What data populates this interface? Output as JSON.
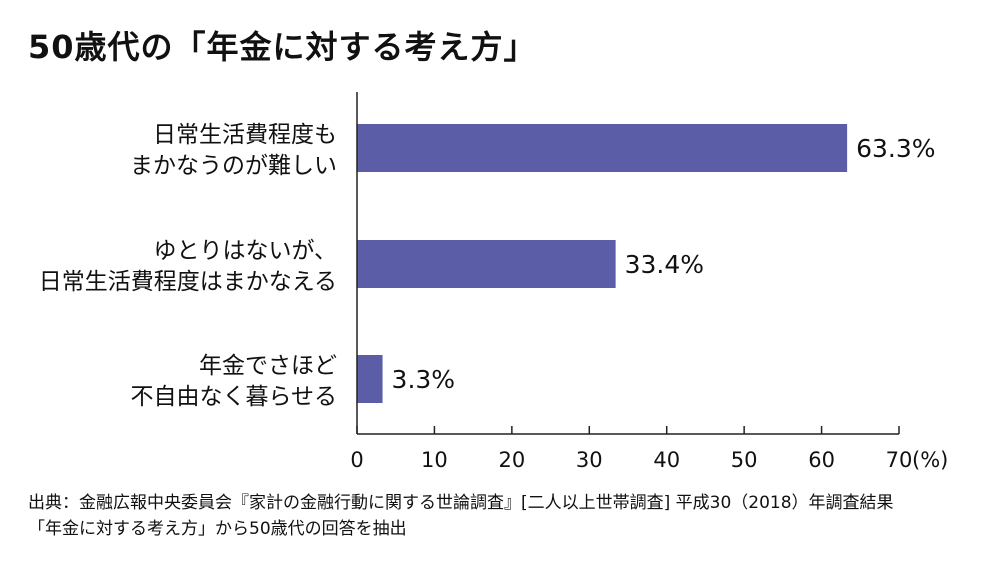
{
  "title": "50歳代の「年金に対する考え方」",
  "chart_data": {
    "type": "bar",
    "orientation": "horizontal",
    "categories": [
      [
        "日常生活費程度も",
        "まかなうのが難しい"
      ],
      [
        "ゆとりはないが、",
        "日常生活費程度はまかなえる"
      ],
      [
        "年金でさほど",
        "不自由なく暮らせる"
      ]
    ],
    "values": [
      63.3,
      33.4,
      3.3
    ],
    "value_labels": [
      "63.3%",
      "33.4%",
      "3.3%"
    ],
    "xlim": [
      0,
      70
    ],
    "xticks": [
      0,
      10,
      20,
      30,
      40,
      50,
      60,
      70
    ],
    "xunit": "(%)",
    "bar_color": "#5b5ea6",
    "grid": false
  },
  "source": {
    "line1": "出典：金融広報中央委員会『家計の金融行動に関する世論調査』[二人以上世帯調査] 平成30（2018）年調査結果",
    "line2": "「年金に対する考え方」から50歳代の回答を抽出"
  }
}
